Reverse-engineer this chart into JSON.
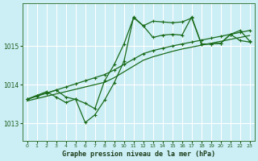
{
  "title": "Graphe pression niveau de la mer (hPa)",
  "bg": "#cceef5",
  "grid_color": "#ffffff",
  "line_color": "#1a6b1a",
  "xlim": [
    -0.5,
    23.5
  ],
  "ylim": [
    1012.55,
    1016.1
  ],
  "yticks": [
    1013,
    1014,
    1015
  ],
  "xticks": [
    0,
    1,
    2,
    3,
    4,
    5,
    6,
    7,
    8,
    9,
    10,
    11,
    12,
    13,
    14,
    15,
    16,
    17,
    18,
    19,
    20,
    21,
    22,
    23
  ],
  "trend_upper": [
    1013.62,
    1013.7,
    1013.78,
    1013.86,
    1013.94,
    1014.02,
    1014.1,
    1014.18,
    1014.26,
    1014.38,
    1014.52,
    1014.66,
    1014.8,
    1014.88,
    1014.94,
    1015.0,
    1015.05,
    1015.1,
    1015.15,
    1015.2,
    1015.25,
    1015.3,
    1015.35,
    1015.4
  ],
  "trend_lower": [
    1013.58,
    1013.64,
    1013.7,
    1013.76,
    1013.82,
    1013.88,
    1013.94,
    1014.0,
    1014.06,
    1014.18,
    1014.33,
    1014.48,
    1014.63,
    1014.72,
    1014.79,
    1014.86,
    1014.92,
    1014.97,
    1015.02,
    1015.07,
    1015.12,
    1015.17,
    1015.22,
    1015.27
  ],
  "wavy1": [
    1013.62,
    1013.72,
    1013.82,
    1013.68,
    1013.54,
    1013.63,
    1013.02,
    1013.22,
    1013.6,
    1014.05,
    1014.6,
    1015.75,
    1015.52,
    1015.22,
    1015.28,
    1015.3,
    1015.28,
    1015.75,
    1015.05,
    1015.05,
    1015.07,
    1015.3,
    1015.4,
    1015.12
  ],
  "wavy2": [
    1013.62,
    1013.72,
    1013.78,
    1013.86,
    1013.68,
    1013.62,
    1013.52,
    1013.38,
    1014.1,
    1014.52,
    1015.05,
    1015.73,
    1015.52,
    1015.64,
    1015.62,
    1015.6,
    1015.62,
    1015.72,
    1015.05,
    1015.05,
    1015.07,
    1015.3,
    1015.14,
    1015.1
  ]
}
